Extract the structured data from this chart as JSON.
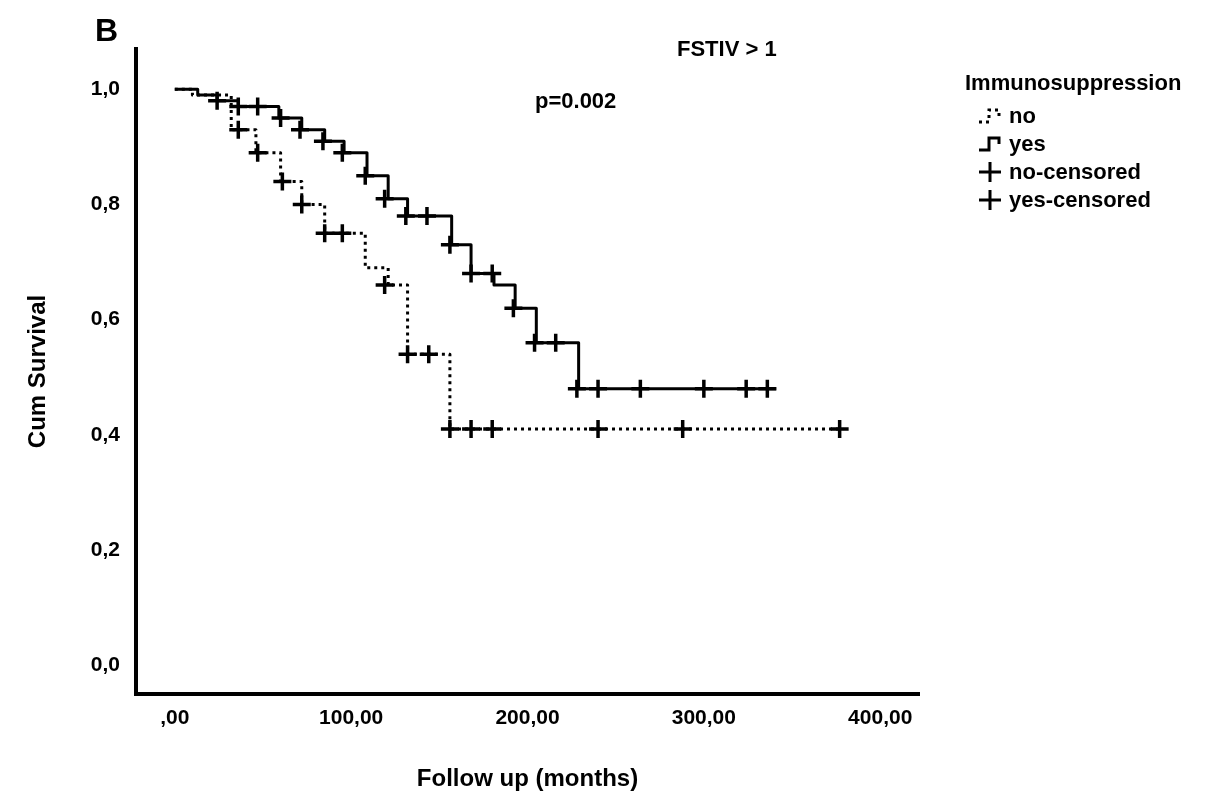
{
  "chart_data": {
    "type": "step",
    "title": "FSTIV > 1",
    "xlabel": "Follow up (months)",
    "ylabel": "Cum Survival",
    "legend_title": "Immunosuppression",
    "legend": "top right",
    "annotations": [
      "B",
      "p=0.002"
    ],
    "xlim": [
      -22,
      422
    ],
    "xticks": [
      {
        "value": 0,
        "label": ",00"
      },
      {
        "value": 100,
        "label": "100,00"
      },
      {
        "value": 200,
        "label": "200,00"
      },
      {
        "value": 300,
        "label": "300,00"
      },
      {
        "value": 400,
        "label": "400,00"
      }
    ],
    "ylim": [
      -0.05,
      1.07
    ],
    "yticks": [
      {
        "value": 0,
        "label": "0,0"
      },
      {
        "value": 0.2,
        "label": "0,2"
      },
      {
        "value": 0.4,
        "label": "0,4"
      },
      {
        "value": 0.6,
        "label": "0,6"
      },
      {
        "value": 0.8,
        "label": "0,8"
      },
      {
        "value": 1,
        "label": "1,0"
      }
    ],
    "grid": false,
    "series": [
      {
        "name": "no",
        "type": "step",
        "color": "#000000",
        "line_style": "dotted",
        "marker": "none",
        "x": [
          0,
          10,
          32,
          46,
          60,
          72,
          85,
          108,
          121,
          132,
          156,
          379
        ],
        "values": [
          1.0,
          0.99,
          0.93,
          0.89,
          0.84,
          0.8,
          0.75,
          0.69,
          0.66,
          0.54,
          0.41,
          0.41
        ]
      },
      {
        "name": "yes",
        "type": "step",
        "color": "#000000",
        "line_style": "solid",
        "marker": "none",
        "x": [
          0,
          13,
          24,
          36,
          59,
          72,
          85,
          96,
          109,
          121,
          132,
          157,
          168,
          181,
          193,
          205,
          229,
          341
        ],
        "values": [
          1.0,
          0.99,
          0.98,
          0.97,
          0.95,
          0.93,
          0.91,
          0.89,
          0.85,
          0.81,
          0.78,
          0.73,
          0.68,
          0.66,
          0.62,
          0.56,
          0.48,
          0.48
        ]
      },
      {
        "name": "no-censored",
        "type": "scatter",
        "color": "#000000",
        "marker": "cross",
        "x": [
          36,
          47,
          61,
          72,
          85,
          95,
          119,
          132,
          144,
          156,
          168,
          180,
          240,
          288,
          377
        ],
        "values": [
          0.93,
          0.89,
          0.84,
          0.8,
          0.75,
          0.75,
          0.66,
          0.54,
          0.54,
          0.41,
          0.41,
          0.41,
          0.41,
          0.41,
          0.41
        ]
      },
      {
        "name": "yes-censored",
        "type": "scatter",
        "color": "#000000",
        "marker": "cross",
        "x": [
          24,
          36,
          47,
          60,
          71,
          84,
          95,
          108,
          119,
          131,
          143,
          156,
          168,
          180,
          192,
          204,
          216,
          228,
          240,
          264,
          300,
          324,
          336
        ],
        "values": [
          0.98,
          0.97,
          0.97,
          0.95,
          0.93,
          0.91,
          0.89,
          0.85,
          0.81,
          0.78,
          0.78,
          0.73,
          0.68,
          0.68,
          0.62,
          0.56,
          0.56,
          0.48,
          0.48,
          0.48,
          0.48,
          0.48,
          0.48
        ]
      }
    ]
  }
}
